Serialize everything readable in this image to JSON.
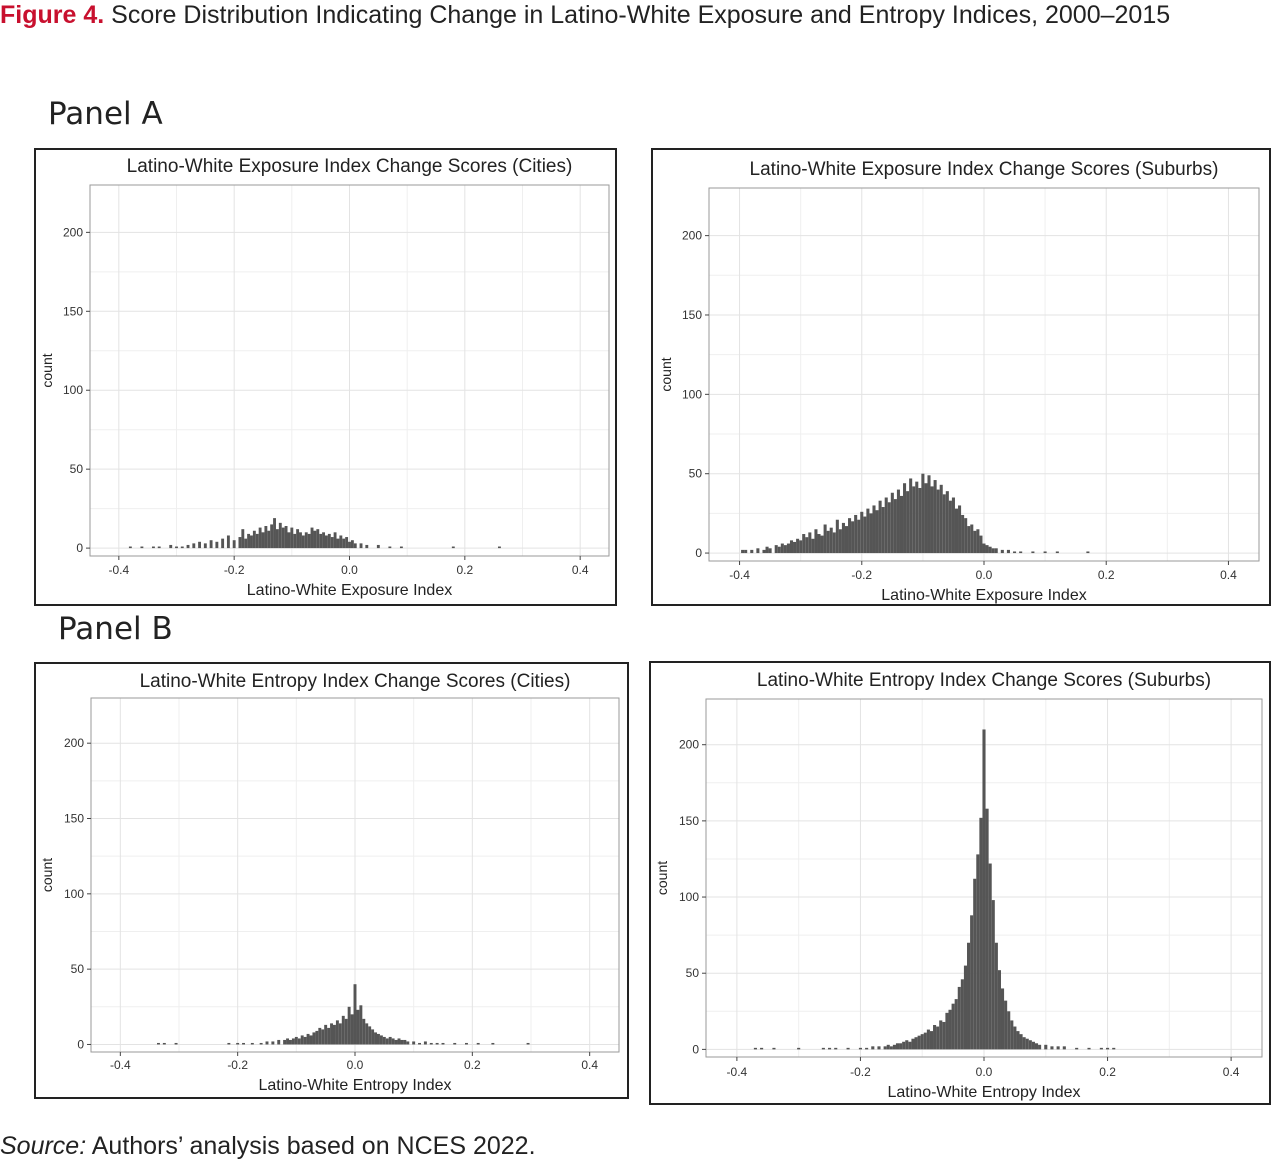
{
  "figure": {
    "label": "Figure 4.",
    "title": "Score Distribution Indicating Change in Latino-White Exposure and Entropy Indices, 2000–2015"
  },
  "panels": [
    "Panel A",
    "Panel B"
  ],
  "source": {
    "label": "Source:",
    "text": "Authors’ analysis based on NCES 2022."
  },
  "colors": {
    "bars": "#555555",
    "grid": "#e3e3e3",
    "panel_border": "#333333"
  },
  "chart_data": [
    {
      "type": "bar",
      "title": "Latino-White Exposure Index Change Scores (Cities)",
      "xlabel": "Latino-White Exposure Index",
      "ylabel": "count",
      "xlim": [
        -0.45,
        0.45
      ],
      "ylim": [
        -5,
        230
      ],
      "xticks": [
        -0.4,
        -0.2,
        0.0,
        0.2,
        0.4
      ],
      "xtick_labels": [
        "-0.4",
        "-0.2",
        "0.0",
        "0.2",
        "0.4"
      ],
      "yticks": [
        0,
        50,
        100,
        150,
        200
      ],
      "ytick_labels": [
        "0",
        "50",
        "100",
        "150",
        "200"
      ],
      "grid": true,
      "bin_width": 0.005,
      "bins": [
        [
          -0.38,
          1
        ],
        [
          -0.36,
          1
        ],
        [
          -0.34,
          1
        ],
        [
          -0.33,
          1
        ],
        [
          -0.31,
          2
        ],
        [
          -0.3,
          1
        ],
        [
          -0.29,
          1
        ],
        [
          -0.28,
          2
        ],
        [
          -0.27,
          3
        ],
        [
          -0.26,
          4
        ],
        [
          -0.25,
          3
        ],
        [
          -0.24,
          5
        ],
        [
          -0.23,
          4
        ],
        [
          -0.22,
          6
        ],
        [
          -0.21,
          8
        ],
        [
          -0.2,
          5
        ],
        [
          -0.19,
          7
        ],
        [
          -0.185,
          12
        ],
        [
          -0.18,
          6
        ],
        [
          -0.175,
          9
        ],
        [
          -0.17,
          8
        ],
        [
          -0.165,
          11
        ],
        [
          -0.16,
          9
        ],
        [
          -0.155,
          13
        ],
        [
          -0.15,
          10
        ],
        [
          -0.145,
          14
        ],
        [
          -0.14,
          11
        ],
        [
          -0.135,
          15
        ],
        [
          -0.13,
          19
        ],
        [
          -0.125,
          12
        ],
        [
          -0.12,
          16
        ],
        [
          -0.115,
          13
        ],
        [
          -0.11,
          14
        ],
        [
          -0.105,
          10
        ],
        [
          -0.1,
          13
        ],
        [
          -0.095,
          9
        ],
        [
          -0.09,
          12
        ],
        [
          -0.085,
          10
        ],
        [
          -0.08,
          8
        ],
        [
          -0.075,
          10
        ],
        [
          -0.07,
          9
        ],
        [
          -0.065,
          13
        ],
        [
          -0.06,
          11
        ],
        [
          -0.055,
          12
        ],
        [
          -0.05,
          9
        ],
        [
          -0.045,
          10
        ],
        [
          -0.04,
          8
        ],
        [
          -0.035,
          9
        ],
        [
          -0.03,
          7
        ],
        [
          -0.025,
          10
        ],
        [
          -0.02,
          6
        ],
        [
          -0.015,
          8
        ],
        [
          -0.01,
          6
        ],
        [
          -0.005,
          7
        ],
        [
          0.0,
          4
        ],
        [
          0.005,
          5
        ],
        [
          0.01,
          3
        ],
        [
          0.02,
          3
        ],
        [
          0.03,
          2
        ],
        [
          0.05,
          2
        ],
        [
          0.07,
          1
        ],
        [
          0.09,
          1
        ],
        [
          0.18,
          1
        ],
        [
          0.26,
          1
        ]
      ]
    },
    {
      "type": "bar",
      "title": "Latino-White Exposure Index Change Scores (Suburbs)",
      "xlabel": "Latino-White Exposure Index",
      "ylabel": "count",
      "xlim": [
        -0.45,
        0.45
      ],
      "ylim": [
        -5,
        230
      ],
      "xticks": [
        -0.4,
        -0.2,
        0.0,
        0.2,
        0.4
      ],
      "xtick_labels": [
        "-0.4",
        "-0.2",
        "0.0",
        "0.2",
        "0.4"
      ],
      "yticks": [
        0,
        50,
        100,
        150,
        200
      ],
      "ytick_labels": [
        "0",
        "50",
        "100",
        "150",
        "200"
      ],
      "grid": true,
      "bin_width": 0.005,
      "bins": [
        [
          -0.395,
          2
        ],
        [
          -0.39,
          2
        ],
        [
          -0.38,
          2
        ],
        [
          -0.37,
          3
        ],
        [
          -0.36,
          2
        ],
        [
          -0.355,
          4
        ],
        [
          -0.35,
          3
        ],
        [
          -0.34,
          5
        ],
        [
          -0.335,
          4
        ],
        [
          -0.33,
          6
        ],
        [
          -0.325,
          5
        ],
        [
          -0.32,
          6
        ],
        [
          -0.315,
          8
        ],
        [
          -0.31,
          7
        ],
        [
          -0.305,
          9
        ],
        [
          -0.3,
          8
        ],
        [
          -0.295,
          12
        ],
        [
          -0.29,
          10
        ],
        [
          -0.285,
          13
        ],
        [
          -0.28,
          9
        ],
        [
          -0.275,
          15
        ],
        [
          -0.27,
          12
        ],
        [
          -0.265,
          11
        ],
        [
          -0.26,
          18
        ],
        [
          -0.255,
          14
        ],
        [
          -0.25,
          16
        ],
        [
          -0.245,
          13
        ],
        [
          -0.24,
          21
        ],
        [
          -0.235,
          15
        ],
        [
          -0.23,
          19
        ],
        [
          -0.225,
          17
        ],
        [
          -0.22,
          22
        ],
        [
          -0.215,
          20
        ],
        [
          -0.21,
          24
        ],
        [
          -0.205,
          21
        ],
        [
          -0.2,
          26
        ],
        [
          -0.195,
          23
        ],
        [
          -0.19,
          28
        ],
        [
          -0.185,
          25
        ],
        [
          -0.18,
          30
        ],
        [
          -0.175,
          27
        ],
        [
          -0.17,
          33
        ],
        [
          -0.165,
          29
        ],
        [
          -0.16,
          35
        ],
        [
          -0.155,
          32
        ],
        [
          -0.15,
          38
        ],
        [
          -0.145,
          34
        ],
        [
          -0.14,
          40
        ],
        [
          -0.135,
          36
        ],
        [
          -0.13,
          44
        ],
        [
          -0.125,
          39
        ],
        [
          -0.12,
          47
        ],
        [
          -0.115,
          42
        ],
        [
          -0.11,
          45
        ],
        [
          -0.105,
          41
        ],
        [
          -0.1,
          50
        ],
        [
          -0.095,
          44
        ],
        [
          -0.09,
          49
        ],
        [
          -0.085,
          42
        ],
        [
          -0.08,
          46
        ],
        [
          -0.075,
          40
        ],
        [
          -0.07,
          43
        ],
        [
          -0.065,
          37
        ],
        [
          -0.06,
          39
        ],
        [
          -0.055,
          33
        ],
        [
          -0.05,
          35
        ],
        [
          -0.045,
          28
        ],
        [
          -0.04,
          30
        ],
        [
          -0.035,
          24
        ],
        [
          -0.03,
          22
        ],
        [
          -0.025,
          17
        ],
        [
          -0.02,
          18
        ],
        [
          -0.015,
          14
        ],
        [
          -0.01,
          15
        ],
        [
          -0.005,
          11
        ],
        [
          0.0,
          6
        ],
        [
          0.005,
          5
        ],
        [
          0.01,
          4
        ],
        [
          0.015,
          3
        ],
        [
          0.02,
          3
        ],
        [
          0.03,
          2
        ],
        [
          0.04,
          2
        ],
        [
          0.05,
          1
        ],
        [
          0.06,
          1
        ],
        [
          0.08,
          1
        ],
        [
          0.1,
          1
        ],
        [
          0.12,
          1
        ],
        [
          0.17,
          1
        ]
      ]
    },
    {
      "type": "bar",
      "title": "Latino-White Entropy Index Change Scores (Cities)",
      "xlabel": "Latino-White Entropy Index",
      "ylabel": "count",
      "xlim": [
        -0.45,
        0.45
      ],
      "ylim": [
        -5,
        230
      ],
      "xticks": [
        -0.4,
        -0.2,
        0.0,
        0.2,
        0.4
      ],
      "xtick_labels": [
        "-0.4",
        "-0.2",
        "0.0",
        "0.2",
        "0.4"
      ],
      "yticks": [
        0,
        50,
        100,
        150,
        200
      ],
      "ytick_labels": [
        "0",
        "50",
        "100",
        "150",
        "200"
      ],
      "grid": true,
      "bin_width": 0.005,
      "bins": [
        [
          -0.335,
          1
        ],
        [
          -0.325,
          1
        ],
        [
          -0.305,
          1
        ],
        [
          -0.215,
          1
        ],
        [
          -0.2,
          1
        ],
        [
          -0.19,
          1
        ],
        [
          -0.175,
          1
        ],
        [
          -0.16,
          1
        ],
        [
          -0.15,
          2
        ],
        [
          -0.14,
          2
        ],
        [
          -0.13,
          3
        ],
        [
          -0.12,
          3
        ],
        [
          -0.115,
          4
        ],
        [
          -0.11,
          3
        ],
        [
          -0.105,
          4
        ],
        [
          -0.1,
          5
        ],
        [
          -0.095,
          4
        ],
        [
          -0.09,
          6
        ],
        [
          -0.085,
          5
        ],
        [
          -0.08,
          7
        ],
        [
          -0.075,
          6
        ],
        [
          -0.07,
          8
        ],
        [
          -0.065,
          9
        ],
        [
          -0.06,
          11
        ],
        [
          -0.055,
          10
        ],
        [
          -0.05,
          13
        ],
        [
          -0.045,
          11
        ],
        [
          -0.04,
          14
        ],
        [
          -0.035,
          13
        ],
        [
          -0.03,
          16
        ],
        [
          -0.025,
          14
        ],
        [
          -0.02,
          19
        ],
        [
          -0.015,
          17
        ],
        [
          -0.01,
          25
        ],
        [
          -0.005,
          20
        ],
        [
          0.0,
          40
        ],
        [
          0.005,
          23
        ],
        [
          0.01,
          26
        ],
        [
          0.015,
          17
        ],
        [
          0.02,
          14
        ],
        [
          0.025,
          12
        ],
        [
          0.03,
          10
        ],
        [
          0.035,
          8
        ],
        [
          0.04,
          7
        ],
        [
          0.045,
          6
        ],
        [
          0.05,
          5
        ],
        [
          0.055,
          4
        ],
        [
          0.06,
          5
        ],
        [
          0.065,
          4
        ],
        [
          0.07,
          3
        ],
        [
          0.075,
          4
        ],
        [
          0.08,
          3
        ],
        [
          0.085,
          3
        ],
        [
          0.09,
          2
        ],
        [
          0.1,
          2
        ],
        [
          0.11,
          1
        ],
        [
          0.12,
          2
        ],
        [
          0.13,
          1
        ],
        [
          0.14,
          1
        ],
        [
          0.15,
          1
        ],
        [
          0.17,
          1
        ],
        [
          0.19,
          1
        ],
        [
          0.21,
          1
        ],
        [
          0.235,
          1
        ],
        [
          0.295,
          1
        ]
      ]
    },
    {
      "type": "bar",
      "title": "Latino-White Entropy Index Change Scores (Suburbs)",
      "xlabel": "Latino-White Entropy Index",
      "ylabel": "count",
      "xlim": [
        -0.45,
        0.45
      ],
      "ylim": [
        -5,
        230
      ],
      "xticks": [
        -0.4,
        -0.2,
        0.0,
        0.2,
        0.4
      ],
      "xtick_labels": [
        "-0.4",
        "-0.2",
        "0.0",
        "0.2",
        "0.4"
      ],
      "yticks": [
        0,
        50,
        100,
        150,
        200
      ],
      "ytick_labels": [
        "0",
        "50",
        "100",
        "150",
        "200"
      ],
      "grid": true,
      "bin_width": 0.005,
      "bins": [
        [
          -0.37,
          1
        ],
        [
          -0.36,
          1
        ],
        [
          -0.34,
          1
        ],
        [
          -0.3,
          1
        ],
        [
          -0.26,
          1
        ],
        [
          -0.25,
          1
        ],
        [
          -0.24,
          1
        ],
        [
          -0.22,
          1
        ],
        [
          -0.2,
          1
        ],
        [
          -0.19,
          1
        ],
        [
          -0.18,
          2
        ],
        [
          -0.17,
          2
        ],
        [
          -0.16,
          2
        ],
        [
          -0.155,
          3
        ],
        [
          -0.15,
          2
        ],
        [
          -0.145,
          3
        ],
        [
          -0.14,
          4
        ],
        [
          -0.135,
          4
        ],
        [
          -0.13,
          5
        ],
        [
          -0.125,
          6
        ],
        [
          -0.12,
          5
        ],
        [
          -0.115,
          7
        ],
        [
          -0.11,
          8
        ],
        [
          -0.105,
          9
        ],
        [
          -0.1,
          10
        ],
        [
          -0.095,
          11
        ],
        [
          -0.09,
          13
        ],
        [
          -0.085,
          12
        ],
        [
          -0.08,
          16
        ],
        [
          -0.075,
          15
        ],
        [
          -0.07,
          19
        ],
        [
          -0.065,
          18
        ],
        [
          -0.06,
          24
        ],
        [
          -0.055,
          26
        ],
        [
          -0.05,
          30
        ],
        [
          -0.045,
          33
        ],
        [
          -0.04,
          41
        ],
        [
          -0.035,
          46
        ],
        [
          -0.03,
          55
        ],
        [
          -0.025,
          70
        ],
        [
          -0.02,
          88
        ],
        [
          -0.015,
          112
        ],
        [
          -0.01,
          128
        ],
        [
          -0.005,
          152
        ],
        [
          0.0,
          210
        ],
        [
          0.005,
          158
        ],
        [
          0.01,
          122
        ],
        [
          0.015,
          98
        ],
        [
          0.02,
          70
        ],
        [
          0.025,
          52
        ],
        [
          0.03,
          40
        ],
        [
          0.035,
          32
        ],
        [
          0.04,
          25
        ],
        [
          0.045,
          19
        ],
        [
          0.05,
          15
        ],
        [
          0.055,
          12
        ],
        [
          0.06,
          10
        ],
        [
          0.065,
          8
        ],
        [
          0.07,
          7
        ],
        [
          0.075,
          6
        ],
        [
          0.08,
          5
        ],
        [
          0.085,
          4
        ],
        [
          0.09,
          3
        ],
        [
          0.1,
          3
        ],
        [
          0.11,
          2
        ],
        [
          0.12,
          2
        ],
        [
          0.13,
          2
        ],
        [
          0.15,
          1
        ],
        [
          0.17,
          1
        ],
        [
          0.19,
          1
        ],
        [
          0.2,
          1
        ],
        [
          0.21,
          1
        ]
      ]
    }
  ]
}
